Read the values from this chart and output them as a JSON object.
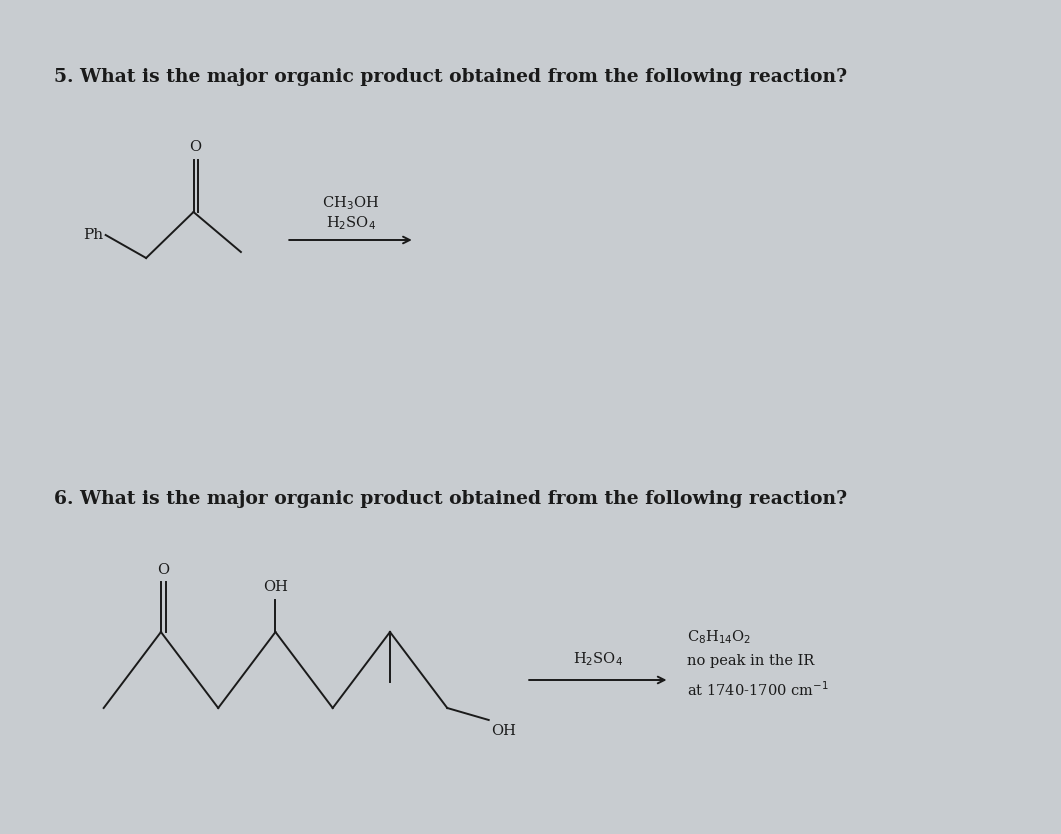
{
  "bg_color": "#c8ccd0",
  "text_color": "#1a1a1a",
  "q5_text": "5. What is the major organic product obtained from the following reaction?",
  "q6_text": "6. What is the major organic product obtained from the following reaction?",
  "q5_reagents_line1": "CH$_3$OH",
  "q5_reagents_line2": "H$_2$SO$_4$",
  "q6_reagents": "H$_2$SO$_4$",
  "q6_product_line1": "C$_8$H$_{14}$O$_2$",
  "q6_product_line2": "no peak in the IR",
  "q6_product_line3": "at 1740-1700 cm$^{-1}$",
  "font_size_question": 13.5,
  "font_size_chem": 10.5,
  "font_size_label": 11,
  "lw": 1.4
}
